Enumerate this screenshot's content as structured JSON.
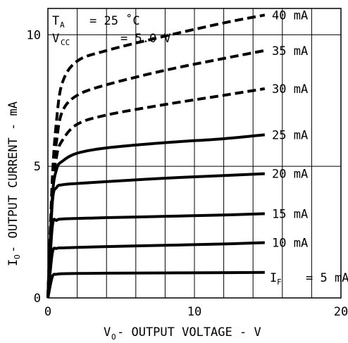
{
  "chart_data": {
    "type": "line",
    "xlabel": {
      "main": "V",
      "sub": "O",
      "rest": " - OUTPUT VOLTAGE - V"
    },
    "ylabel": {
      "main": "I",
      "sub": "O",
      "rest": " - OUTPUT CURRENT - mA"
    },
    "xlim": [
      0,
      20
    ],
    "ylim": [
      0,
      11
    ],
    "x_ticks": [
      0,
      10,
      20
    ],
    "y_ticks": [
      0,
      5,
      10
    ],
    "grid": true,
    "annotations": {
      "ta_label": "T",
      "ta_sub": "A",
      "ta_value": "= 25 ˚C",
      "vcc_label": "V",
      "vcc_sub": "CC",
      "vcc_value": "= 5.0 V",
      "if_label": "I",
      "if_sub": "F",
      "if_value": "= 5 mA"
    },
    "series": [
      {
        "name": "40 mA",
        "style": "dashed",
        "x": [
          0,
          0.3,
          0.6,
          1.0,
          2.0,
          4.0,
          8.0,
          12.0,
          14.8
        ],
        "y": [
          0,
          4.5,
          6.8,
          8.2,
          9.0,
          9.4,
          9.95,
          10.45,
          10.75
        ]
      },
      {
        "name": "35 mA",
        "style": "dashed",
        "x": [
          0,
          0.3,
          0.6,
          1.0,
          2.0,
          4.0,
          8.0,
          12.0,
          14.8
        ],
        "y": [
          0,
          4.2,
          6.0,
          7.1,
          7.7,
          8.1,
          8.65,
          9.1,
          9.4
        ]
      },
      {
        "name": "30 mA",
        "style": "dashed",
        "x": [
          0,
          0.3,
          0.6,
          1.0,
          2.0,
          4.0,
          8.0,
          12.0,
          14.8
        ],
        "y": [
          0,
          3.9,
          5.4,
          6.0,
          6.6,
          6.95,
          7.35,
          7.7,
          7.95
        ]
      },
      {
        "name": "25 mA",
        "style": "solid",
        "x": [
          0,
          0.3,
          0.6,
          1.0,
          2.0,
          4.0,
          8.0,
          12.0,
          14.8
        ],
        "y": [
          0,
          3.8,
          4.9,
          5.2,
          5.5,
          5.7,
          5.9,
          6.05,
          6.2
        ]
      },
      {
        "name": "20 mA",
        "style": "solid",
        "x": [
          0,
          0.3,
          0.6,
          1.0,
          2.0,
          4.0,
          8.0,
          12.0,
          14.8
        ],
        "y": [
          0,
          3.6,
          4.2,
          4.3,
          4.35,
          4.42,
          4.55,
          4.65,
          4.72
        ]
      },
      {
        "name": "15 mA",
        "style": "solid",
        "x": [
          0,
          0.3,
          0.6,
          1.0,
          2.0,
          4.0,
          8.0,
          12.0,
          14.8
        ],
        "y": [
          0,
          2.7,
          2.95,
          3.0,
          3.02,
          3.05,
          3.1,
          3.15,
          3.2
        ]
      },
      {
        "name": "10 mA",
        "style": "solid",
        "x": [
          0,
          0.3,
          0.6,
          1.0,
          2.0,
          4.0,
          8.0,
          12.0,
          14.8
        ],
        "y": [
          0,
          1.7,
          1.88,
          1.9,
          1.92,
          1.95,
          2.0,
          2.05,
          2.1
        ]
      },
      {
        "name": "5 mA",
        "style": "solid",
        "x": [
          0,
          0.3,
          0.6,
          1.0,
          2.0,
          4.0,
          8.0,
          12.0,
          14.8
        ],
        "y": [
          0,
          0.8,
          0.9,
          0.92,
          0.93,
          0.94,
          0.95,
          0.96,
          0.97
        ]
      }
    ],
    "series_labels": [
      "40 mA",
      "35 mA",
      "30 mA",
      "25 mA",
      "20 mA",
      "15 mA",
      "10 mA"
    ]
  }
}
